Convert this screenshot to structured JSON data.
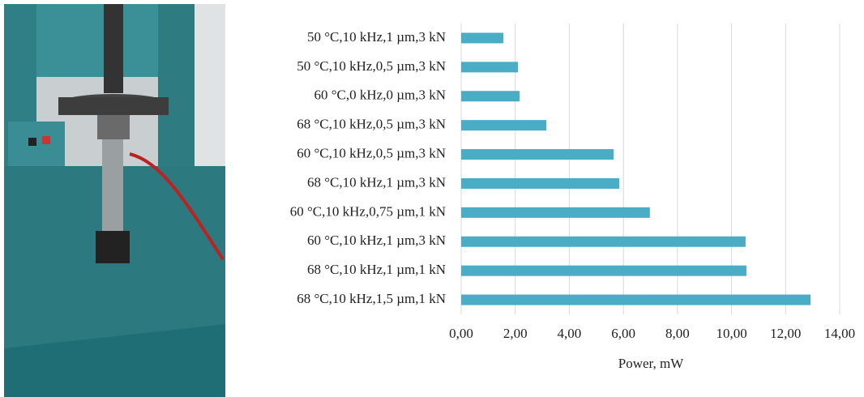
{
  "chart_data": {
    "type": "bar",
    "orientation": "horizontal",
    "categories": [
      "50 °C,10 kHz,1 µm,3 kN",
      "50 °C,10 kHz,0,5 µm,3 kN",
      "60 °C,0 kHz,0 µm,3 kN",
      "68 °C,10 kHz,0,5 µm,3 kN",
      "60 °C,10 kHz,0,5 µm,3 kN",
      "68 °C,10 kHz,1 µm,3 kN",
      "60 °C,10 kHz,0,75 µm,1 kN",
      "60 °C,10 kHz,1 µm,3 kN",
      "68 °C,10 kHz,1 µm,1 kN",
      "68 °C,10 kHz,1,5 µm,1 kN"
    ],
    "values": [
      1.56,
      2.1,
      2.16,
      3.15,
      5.64,
      5.85,
      6.98,
      10.52,
      10.55,
      12.92
    ],
    "color": "#4bacc6",
    "xlabel": "Power, mW",
    "xlim": [
      0,
      14
    ],
    "xticks": [
      {
        "value": 0,
        "label": "0,00"
      },
      {
        "value": 2,
        "label": "2,00"
      },
      {
        "value": 4,
        "label": "4,00"
      },
      {
        "value": 6,
        "label": "6,00"
      },
      {
        "value": 8,
        "label": "8,00"
      },
      {
        "value": 10,
        "label": "10,00"
      },
      {
        "value": 12,
        "label": "12,00"
      },
      {
        "value": 14,
        "label": "14,00"
      }
    ],
    "grid": true
  }
}
